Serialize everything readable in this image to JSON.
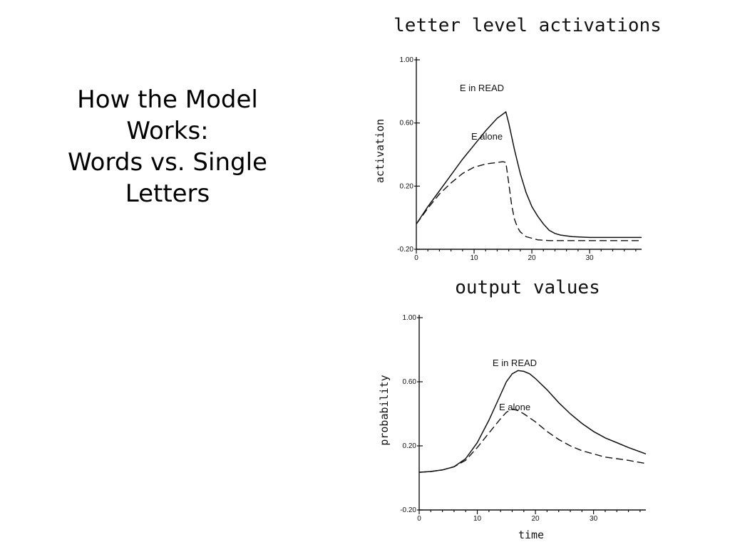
{
  "slide": {
    "title_lines": [
      "How the Model",
      "Works:",
      "Words vs. Single",
      "Letters"
    ]
  },
  "chart_data": [
    {
      "type": "line",
      "title": "letter level activations",
      "xlabel": "",
      "ylabel": "activation",
      "xlim": [
        0,
        39
      ],
      "ylim": [
        -0.2,
        1.0
      ],
      "x_ticks": [
        0,
        10,
        20,
        30
      ],
      "y_ticks": [
        -0.2,
        0.2,
        0.6,
        1.0
      ],
      "y_tick_labels": [
        "-0.20",
        "0.20",
        "0.60",
        "1.00"
      ],
      "series": [
        {
          "name": "E in READ",
          "style": "solid",
          "x": [
            0,
            2,
            4,
            6,
            8,
            10,
            12,
            14,
            15.5,
            16,
            17,
            18,
            19,
            20,
            21,
            22,
            23,
            24,
            25,
            27,
            30,
            35,
            39
          ],
          "y": [
            -0.04,
            0.07,
            0.17,
            0.27,
            0.37,
            0.46,
            0.55,
            0.63,
            0.67,
            0.6,
            0.43,
            0.28,
            0.16,
            0.07,
            0.01,
            -0.04,
            -0.08,
            -0.1,
            -0.11,
            -0.12,
            -0.125,
            -0.125,
            -0.125
          ]
        },
        {
          "name": "E alone",
          "style": "dashed",
          "x": [
            0,
            2,
            4,
            6,
            8,
            10,
            12,
            14,
            15,
            15.5,
            16,
            16.5,
            17,
            17.5,
            18,
            19,
            20,
            21,
            23,
            26,
            30,
            35,
            39
          ],
          "y": [
            -0.04,
            0.06,
            0.15,
            0.22,
            0.28,
            0.32,
            0.34,
            0.35,
            0.355,
            0.35,
            0.22,
            0.08,
            -0.01,
            -0.06,
            -0.09,
            -0.12,
            -0.13,
            -0.14,
            -0.145,
            -0.145,
            -0.145,
            -0.145,
            -0.145
          ]
        }
      ]
    },
    {
      "type": "line",
      "title": "output values",
      "xlabel": "time",
      "ylabel": "probability",
      "xlim": [
        0,
        39
      ],
      "ylim": [
        -0.2,
        1.0
      ],
      "x_ticks": [
        0,
        10,
        20,
        30
      ],
      "y_ticks": [
        -0.2,
        0.2,
        0.6,
        1.0
      ],
      "y_tick_labels": [
        "-0.20",
        "0.20",
        "0.60",
        "1.00"
      ],
      "series": [
        {
          "name": "E in READ",
          "style": "solid",
          "x": [
            0,
            2,
            4,
            6,
            8,
            10,
            12,
            14,
            15,
            16,
            17,
            18,
            19,
            20,
            22,
            24,
            26,
            28,
            30,
            32,
            34,
            36,
            39
          ],
          "y": [
            0.035,
            0.04,
            0.05,
            0.07,
            0.12,
            0.22,
            0.36,
            0.52,
            0.6,
            0.65,
            0.67,
            0.665,
            0.65,
            0.62,
            0.55,
            0.47,
            0.4,
            0.34,
            0.29,
            0.25,
            0.22,
            0.19,
            0.15
          ]
        },
        {
          "name": "E alone",
          "style": "dashed",
          "x": [
            0,
            2,
            4,
            6,
            8,
            10,
            12,
            14,
            15,
            16,
            17,
            18,
            20,
            22,
            24,
            26,
            28,
            30,
            32,
            34,
            36,
            39
          ],
          "y": [
            0.035,
            0.04,
            0.05,
            0.07,
            0.11,
            0.19,
            0.28,
            0.37,
            0.41,
            0.43,
            0.42,
            0.4,
            0.35,
            0.29,
            0.24,
            0.2,
            0.17,
            0.15,
            0.13,
            0.12,
            0.11,
            0.09
          ]
        }
      ]
    }
  ]
}
